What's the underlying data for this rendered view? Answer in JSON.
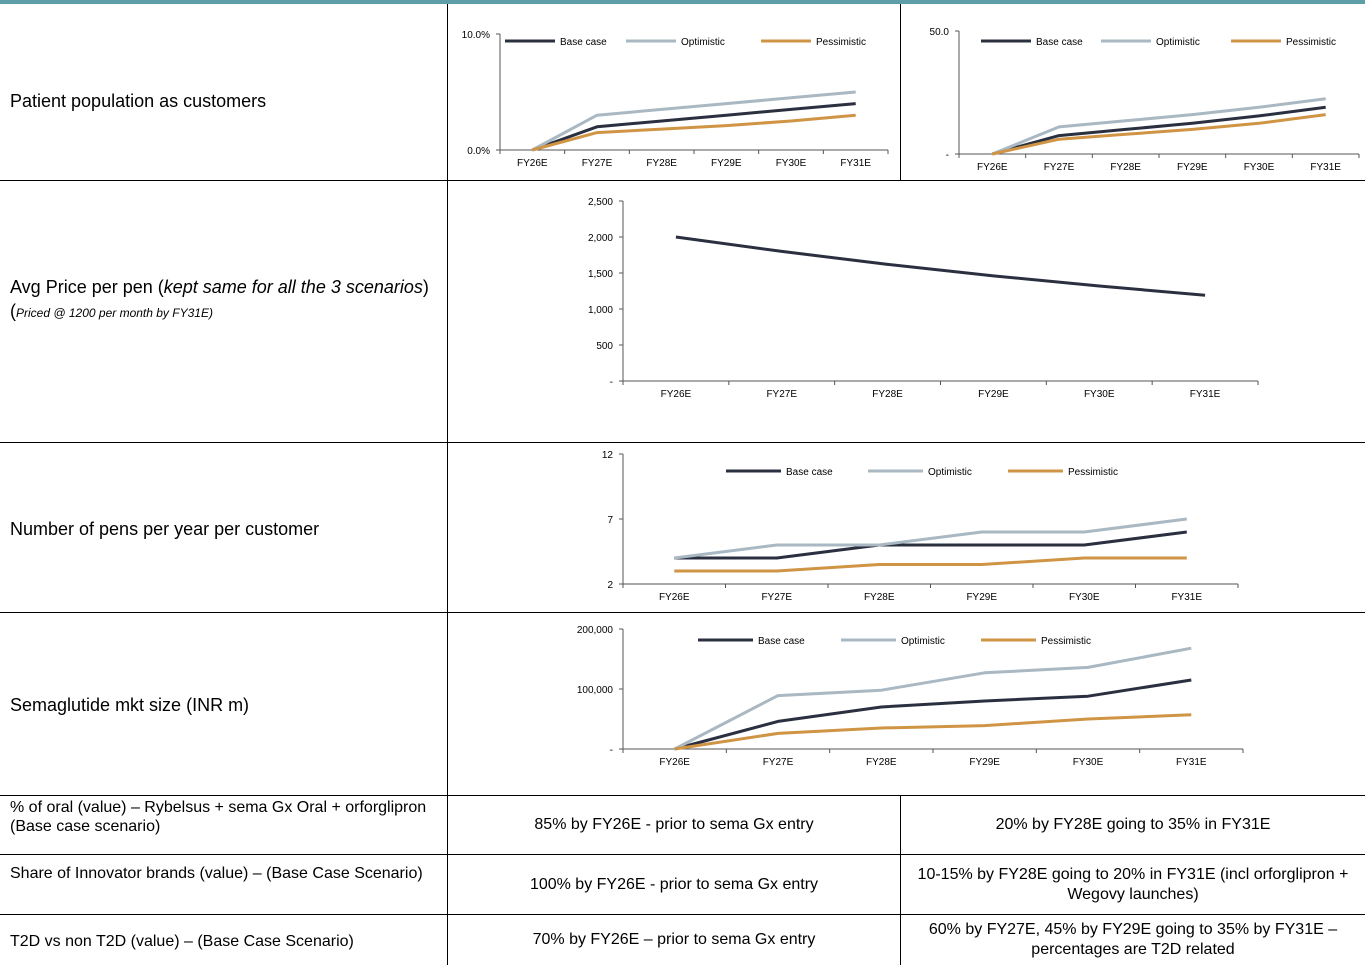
{
  "rows": {
    "row1": {
      "label": "Patient population as customers"
    },
    "row2": {
      "label_main": "Avg Price per pen (",
      "label_italic": "kept same for all the 3 scenarios",
      "label_close": ")",
      "label_note_open": "(",
      "label_note": "Priced @ 1200 per month by FY31E)"
    },
    "row3": {
      "label": "Number of pens per year per customer"
    },
    "row4": {
      "label": "Semaglutide mkt size (INR m)"
    }
  },
  "bottom_table": [
    {
      "label": "% of oral (value) – Rybelsus + sema Gx Oral + orforglipron (Base case scenario)",
      "col1": "85% by FY26E - prior to sema Gx entry",
      "col2": "20% by FY28E going to 35% in FY31E"
    },
    {
      "label": "Share of Innovator brands (value) – (Base Case Scenario)",
      "col1": "100% by FY26E - prior to sema Gx entry",
      "col2": "10-15% by FY28E going to 20% in FY31E (incl orforglipron + Wegovy launches)"
    },
    {
      "label": "T2D vs non T2D (value) – (Base Case Scenario)",
      "col1": "70% by FY26E – prior to sema Gx entry",
      "col2": "60% by FY27E, 45% by FY29E going to 35% by FY31E – percentages are T2D related"
    }
  ],
  "chart_data": [
    {
      "id": "c1",
      "type": "line",
      "categories": [
        "FY26E",
        "FY27E",
        "FY28E",
        "FY29E",
        "FY30E",
        "FY31E"
      ],
      "series": [
        {
          "name": "Base case",
          "color": "#2b3040",
          "values": [
            0,
            2.0,
            2.5,
            3.0,
            3.5,
            4.0
          ]
        },
        {
          "name": "Optimistic",
          "color": "#a9b8c2",
          "values": [
            0,
            3.0,
            3.5,
            4.0,
            4.5,
            5.0
          ]
        },
        {
          "name": "Pessimistic",
          "color": "#d09445",
          "values": [
            0,
            1.5,
            1.8,
            2.1,
            2.5,
            3.0
          ]
        }
      ],
      "ylim": [
        0,
        10
      ],
      "yticks": [
        0,
        10
      ],
      "ytick_labels": [
        "0.0%",
        "10.0%"
      ],
      "legend": "top",
      "grid": false
    },
    {
      "id": "c2",
      "type": "line",
      "categories": [
        "FY26E",
        "FY27E",
        "FY28E",
        "FY29E",
        "FY30E",
        "FY31E"
      ],
      "series": [
        {
          "name": "Base case",
          "color": "#2b3040",
          "values": [
            0,
            7.5,
            10.0,
            12.5,
            15.5,
            19.0
          ]
        },
        {
          "name": "Optimistic",
          "color": "#a9b8c2",
          "values": [
            0,
            11.0,
            13.5,
            16.0,
            19.0,
            22.5
          ]
        },
        {
          "name": "Pessimistic",
          "color": "#d09445",
          "values": [
            0,
            6.0,
            8.0,
            10.0,
            12.5,
            16.0
          ]
        }
      ],
      "ylim": [
        0,
        50
      ],
      "yticks": [
        0,
        50
      ],
      "ytick_labels": [
        "-",
        "50.0"
      ],
      "legend": "top",
      "grid": false
    },
    {
      "id": "c3",
      "type": "line",
      "categories": [
        "FY26E",
        "FY27E",
        "FY28E",
        "FY29E",
        "FY30E",
        "FY31E"
      ],
      "series": [
        {
          "color": "#2b3040",
          "values": [
            2000,
            1800,
            1620,
            1460,
            1320,
            1190
          ]
        }
      ],
      "ylim": [
        0,
        2500
      ],
      "yticks": [
        0,
        500,
        1000,
        1500,
        2000,
        2500
      ],
      "ytick_labels": [
        "-",
        "500",
        "1,000",
        "1,500",
        "2,000",
        "2,500"
      ],
      "grid": false
    },
    {
      "id": "c4",
      "type": "line",
      "categories": [
        "FY26E",
        "FY27E",
        "FY28E",
        "FY29E",
        "FY30E",
        "FY31E"
      ],
      "series": [
        {
          "name": "Base case",
          "color": "#2b3040",
          "values": [
            4,
            4,
            5,
            5,
            5,
            6
          ]
        },
        {
          "name": "Optimistic",
          "color": "#a9b8c2",
          "values": [
            4,
            5,
            5,
            6,
            6,
            7
          ]
        },
        {
          "name": "Pessimistic",
          "color": "#d09445",
          "values": [
            3,
            3,
            3.5,
            3.5,
            4,
            4
          ]
        }
      ],
      "ylim": [
        2,
        12
      ],
      "yticks": [
        2,
        7,
        12
      ],
      "ytick_labels": [
        "2",
        "7",
        "12"
      ],
      "legend": "top",
      "grid": false
    },
    {
      "id": "c5",
      "type": "line",
      "categories": [
        "FY26E",
        "FY27E",
        "FY28E",
        "FY29E",
        "FY30E",
        "FY31E"
      ],
      "series": [
        {
          "name": "Base case",
          "color": "#2b3040",
          "values": [
            0,
            46000,
            70000,
            80000,
            88000,
            115000
          ]
        },
        {
          "name": "Optimistic",
          "color": "#a9b8c2",
          "values": [
            0,
            89000,
            98000,
            127000,
            136000,
            168000
          ]
        },
        {
          "name": "Pessimistic",
          "color": "#d09445",
          "values": [
            0,
            26000,
            35000,
            39000,
            50000,
            57000
          ]
        }
      ],
      "ylim": [
        0,
        200000
      ],
      "yticks": [
        0,
        100000,
        200000
      ],
      "ytick_labels": [
        "-",
        "100,000",
        "200,000"
      ],
      "legend": "top",
      "grid": false
    }
  ]
}
